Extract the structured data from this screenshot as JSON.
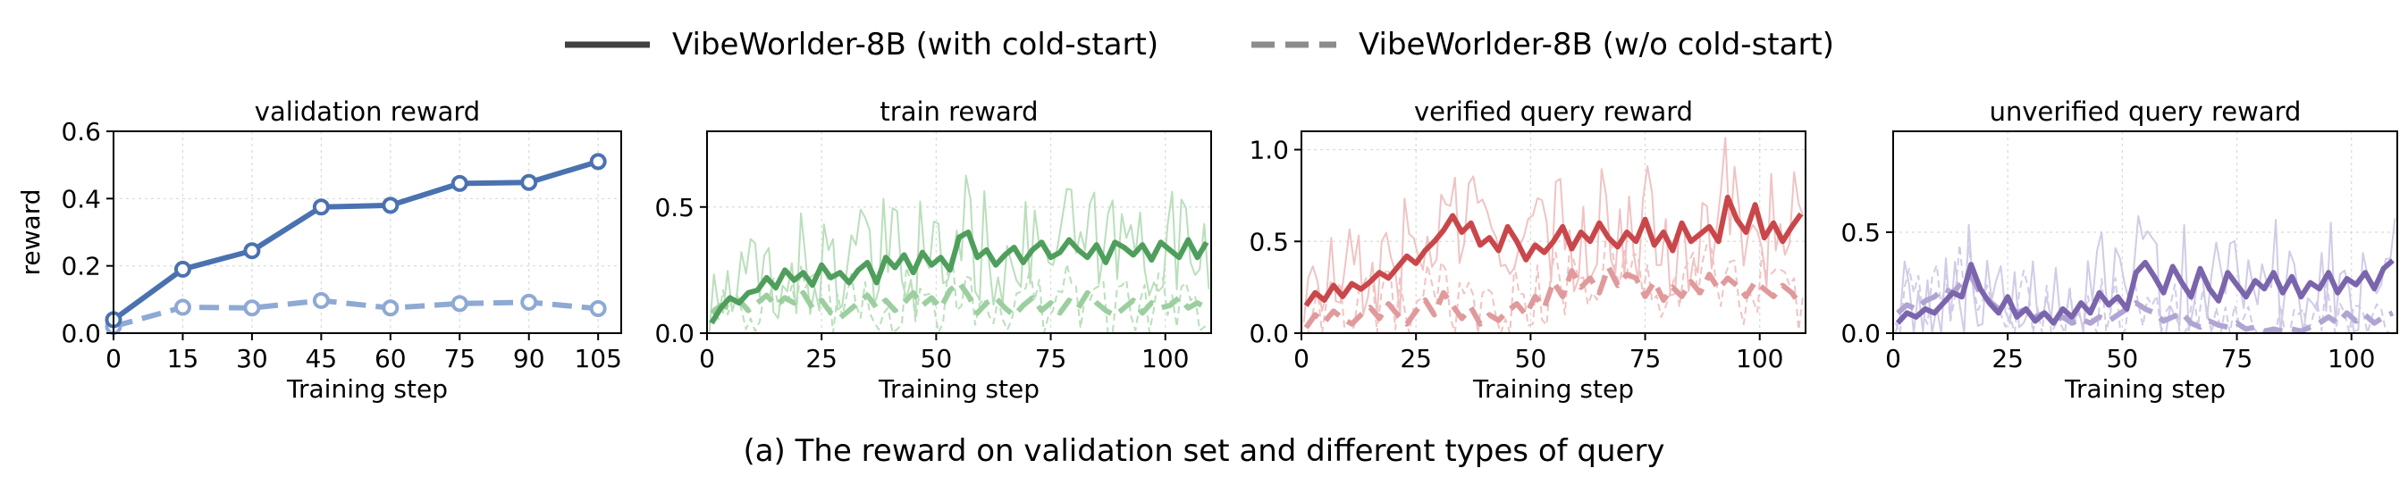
{
  "legend": {
    "entries": [
      {
        "label": "VibeWorlder-8B (with cold-start)",
        "style": "solid",
        "color": "#404040"
      },
      {
        "label": "VibeWorlder-8B (w/o cold-start)",
        "style": "dashed",
        "color": "#8c8c8c"
      }
    ]
  },
  "caption": "(a) The reward on validation set and different types of query",
  "chart_data": [
    {
      "type": "line",
      "title": "validation reward",
      "xlabel": "Training step",
      "ylabel": "reward",
      "xlim": [
        0,
        110
      ],
      "ylim": [
        0,
        0.6
      ],
      "xticks": [
        0,
        15,
        30,
        45,
        60,
        75,
        90,
        105
      ],
      "yticks": [
        0.0,
        0.2,
        0.4,
        0.6
      ],
      "ytick_labels": [
        "0.0",
        "0.2",
        "0.4",
        "0.6"
      ],
      "grid": true,
      "color": "#4a72b0",
      "light_color": "#8ea9d4",
      "markers": true,
      "series": [
        {
          "name": "VibeWorlder-8B (with cold-start)",
          "style": "solid",
          "x": [
            0,
            15,
            30,
            45,
            60,
            75,
            90,
            105
          ],
          "values": [
            0.04,
            0.19,
            0.245,
            0.375,
            0.38,
            0.445,
            0.448,
            0.51
          ]
        },
        {
          "name": "VibeWorlder-8B (w/o cold-start)",
          "style": "dashed",
          "x": [
            0,
            15,
            30,
            45,
            60,
            75,
            90,
            105
          ],
          "values": [
            0.02,
            0.077,
            0.075,
            0.097,
            0.075,
            0.088,
            0.092,
            0.073
          ]
        }
      ]
    },
    {
      "type": "line",
      "title": "train reward",
      "xlabel": "Training step",
      "ylabel": "",
      "xlim": [
        0,
        110
      ],
      "ylim": [
        0,
        0.8
      ],
      "xticks": [
        0,
        25,
        50,
        75,
        100
      ],
      "yticks": [
        0.0,
        0.5
      ],
      "ytick_labels": [
        "0.0",
        "0.5"
      ],
      "grid": true,
      "color": "#4f9e5c",
      "light_color": "#9ccf9f",
      "noise_color": "#b9dfbb",
      "series": [
        {
          "name": "VibeWorlder-8B (with cold-start)",
          "style": "solid",
          "x": [
            1,
            3,
            5,
            7,
            9,
            11,
            13,
            15,
            17,
            19,
            21,
            23,
            25,
            27,
            29,
            31,
            33,
            35,
            37,
            39,
            41,
            43,
            45,
            47,
            49,
            51,
            53,
            55,
            57,
            59,
            61,
            63,
            65,
            67,
            69,
            71,
            73,
            75,
            77,
            79,
            81,
            83,
            85,
            87,
            89,
            91,
            93,
            95,
            97,
            99,
            101,
            103,
            105,
            107,
            109
          ],
          "values": [
            0.04,
            0.1,
            0.14,
            0.12,
            0.16,
            0.17,
            0.22,
            0.18,
            0.25,
            0.21,
            0.24,
            0.19,
            0.27,
            0.22,
            0.24,
            0.2,
            0.25,
            0.28,
            0.2,
            0.3,
            0.26,
            0.31,
            0.24,
            0.32,
            0.27,
            0.3,
            0.25,
            0.38,
            0.4,
            0.3,
            0.33,
            0.27,
            0.31,
            0.34,
            0.28,
            0.33,
            0.36,
            0.3,
            0.32,
            0.37,
            0.33,
            0.3,
            0.35,
            0.28,
            0.36,
            0.34,
            0.31,
            0.35,
            0.29,
            0.36,
            0.33,
            0.3,
            0.37,
            0.3,
            0.36
          ]
        },
        {
          "name": "VibeWorlder-8B (w/o cold-start)",
          "style": "dashed",
          "x": [
            1,
            3,
            5,
            7,
            9,
            11,
            13,
            15,
            17,
            19,
            21,
            23,
            25,
            27,
            29,
            31,
            33,
            35,
            37,
            39,
            41,
            43,
            45,
            47,
            49,
            51,
            53,
            55,
            57,
            59,
            61,
            63,
            65,
            67,
            69,
            71,
            73,
            75,
            77,
            79,
            81,
            83,
            85,
            87,
            89,
            91,
            93,
            95,
            97,
            99,
            101,
            103,
            105,
            107,
            109
          ],
          "values": [
            0.08,
            0.11,
            0.1,
            0.13,
            0.09,
            0.12,
            0.15,
            0.11,
            0.14,
            0.12,
            0.16,
            0.1,
            0.13,
            0.08,
            0.06,
            0.09,
            0.12,
            0.15,
            0.1,
            0.13,
            0.09,
            0.12,
            0.16,
            0.11,
            0.14,
            0.1,
            0.17,
            0.2,
            0.15,
            0.08,
            0.12,
            0.14,
            0.1,
            0.07,
            0.11,
            0.14,
            0.09,
            0.12,
            0.08,
            0.13,
            0.1,
            0.16,
            0.12,
            0.09,
            0.07,
            0.1,
            0.13,
            0.08,
            0.12,
            0.1,
            0.11,
            0.14,
            0.1,
            0.12,
            0.1
          ]
        }
      ]
    },
    {
      "type": "line",
      "title": "verified query reward",
      "xlabel": "Training step",
      "ylabel": "",
      "xlim": [
        0,
        110
      ],
      "ylim": [
        0,
        1.1
      ],
      "xticks": [
        0,
        25,
        50,
        75,
        100
      ],
      "yticks": [
        0.0,
        0.5,
        1.0
      ],
      "ytick_labels": [
        "0.0",
        "0.5",
        "1.0"
      ],
      "grid": true,
      "color": "#c9474a",
      "light_color": "#e09a9b",
      "noise_color": "#f0c3c3",
      "series": [
        {
          "name": "VibeWorlder-8B (with cold-start)",
          "style": "solid",
          "x": [
            1,
            3,
            5,
            7,
            9,
            11,
            13,
            15,
            17,
            19,
            21,
            23,
            25,
            27,
            29,
            31,
            33,
            35,
            37,
            39,
            41,
            43,
            45,
            47,
            49,
            51,
            53,
            55,
            57,
            59,
            61,
            63,
            65,
            67,
            69,
            71,
            73,
            75,
            77,
            79,
            81,
            83,
            85,
            87,
            89,
            91,
            93,
            95,
            97,
            99,
            101,
            103,
            105,
            107,
            109
          ],
          "values": [
            0.15,
            0.22,
            0.18,
            0.26,
            0.2,
            0.27,
            0.24,
            0.28,
            0.33,
            0.3,
            0.36,
            0.42,
            0.38,
            0.45,
            0.5,
            0.56,
            0.64,
            0.55,
            0.6,
            0.48,
            0.52,
            0.45,
            0.58,
            0.5,
            0.4,
            0.48,
            0.44,
            0.5,
            0.58,
            0.46,
            0.55,
            0.5,
            0.6,
            0.52,
            0.47,
            0.55,
            0.5,
            0.62,
            0.48,
            0.55,
            0.45,
            0.6,
            0.5,
            0.54,
            0.58,
            0.5,
            0.74,
            0.62,
            0.55,
            0.7,
            0.52,
            0.6,
            0.5,
            0.58,
            0.65
          ]
        },
        {
          "name": "VibeWorlder-8B (w/o cold-start)",
          "style": "dashed",
          "x": [
            1,
            3,
            5,
            7,
            9,
            11,
            13,
            15,
            17,
            19,
            21,
            23,
            25,
            27,
            29,
            31,
            33,
            35,
            37,
            39,
            41,
            43,
            45,
            47,
            49,
            51,
            53,
            55,
            57,
            59,
            61,
            63,
            65,
            67,
            69,
            71,
            73,
            75,
            77,
            79,
            81,
            83,
            85,
            87,
            89,
            91,
            93,
            95,
            97,
            99,
            101,
            103,
            105,
            107,
            109
          ],
          "values": [
            0.03,
            0.1,
            0.06,
            0.12,
            0.08,
            0.05,
            0.1,
            0.14,
            0.08,
            0.16,
            0.1,
            0.05,
            0.12,
            0.18,
            0.1,
            0.22,
            0.15,
            0.08,
            0.14,
            0.05,
            0.1,
            0.07,
            0.12,
            0.16,
            0.1,
            0.2,
            0.14,
            0.28,
            0.2,
            0.34,
            0.25,
            0.3,
            0.22,
            0.36,
            0.26,
            0.32,
            0.3,
            0.2,
            0.28,
            0.18,
            0.25,
            0.2,
            0.28,
            0.22,
            0.32,
            0.24,
            0.3,
            0.26,
            0.2,
            0.28,
            0.24,
            0.2,
            0.26,
            0.22,
            0.15
          ]
        }
      ]
    },
    {
      "type": "line",
      "title": "unverified query reward",
      "xlabel": "Training step",
      "ylabel": "",
      "xlim": [
        0,
        110
      ],
      "ylim": [
        0,
        1.0
      ],
      "xticks": [
        0,
        25,
        50,
        75,
        100
      ],
      "yticks": [
        0.0,
        0.5
      ],
      "ytick_labels": [
        "0.0",
        "0.5"
      ],
      "grid": true,
      "color": "#7a65ad",
      "light_color": "#b0a4d2",
      "noise_color": "#d2cbe7",
      "series": [
        {
          "name": "VibeWorlder-8B (with cold-start)",
          "style": "solid",
          "x": [
            1,
            3,
            5,
            7,
            9,
            11,
            13,
            15,
            17,
            19,
            21,
            23,
            25,
            27,
            29,
            31,
            33,
            35,
            37,
            39,
            41,
            43,
            45,
            47,
            49,
            51,
            53,
            55,
            57,
            59,
            61,
            63,
            65,
            67,
            69,
            71,
            73,
            75,
            77,
            79,
            81,
            83,
            85,
            87,
            89,
            91,
            93,
            95,
            97,
            99,
            101,
            103,
            105,
            107,
            109
          ],
          "values": [
            0.05,
            0.1,
            0.08,
            0.12,
            0.1,
            0.15,
            0.2,
            0.18,
            0.34,
            0.22,
            0.15,
            0.1,
            0.18,
            0.08,
            0.12,
            0.06,
            0.1,
            0.05,
            0.12,
            0.08,
            0.15,
            0.1,
            0.2,
            0.14,
            0.18,
            0.12,
            0.3,
            0.35,
            0.28,
            0.2,
            0.33,
            0.25,
            0.18,
            0.32,
            0.22,
            0.16,
            0.3,
            0.24,
            0.18,
            0.26,
            0.22,
            0.3,
            0.2,
            0.28,
            0.18,
            0.25,
            0.22,
            0.3,
            0.2,
            0.27,
            0.24,
            0.3,
            0.22,
            0.32,
            0.36
          ]
        },
        {
          "name": "VibeWorlder-8B (w/o cold-start)",
          "style": "dashed",
          "x": [
            1,
            3,
            5,
            7,
            9,
            11,
            13,
            15,
            17,
            19,
            21,
            23,
            25,
            27,
            29,
            31,
            33,
            35,
            37,
            39,
            41,
            43,
            45,
            47,
            49,
            51,
            53,
            55,
            57,
            59,
            61,
            63,
            65,
            67,
            69,
            71,
            73,
            75,
            77,
            79,
            81,
            83,
            85,
            87,
            89,
            91,
            93,
            95,
            97,
            99,
            101,
            103,
            105,
            107,
            109
          ],
          "values": [
            0.1,
            0.14,
            0.12,
            0.16,
            0.18,
            0.22,
            0.2,
            0.25,
            0.28,
            0.2,
            0.16,
            0.12,
            0.14,
            0.1,
            0.12,
            0.08,
            0.1,
            0.06,
            0.08,
            0.05,
            0.07,
            0.05,
            0.08,
            0.06,
            0.09,
            0.12,
            0.15,
            0.12,
            0.1,
            0.06,
            0.08,
            0.1,
            0.05,
            0.03,
            0.06,
            0.04,
            0.03,
            0.05,
            0.02,
            0.03,
            0.01,
            0.02,
            0.01,
            0.02,
            0.01,
            0.03,
            0.05,
            0.08,
            0.05,
            0.1,
            0.06,
            0.09,
            0.05,
            0.08,
            0.1
          ]
        }
      ]
    }
  ]
}
